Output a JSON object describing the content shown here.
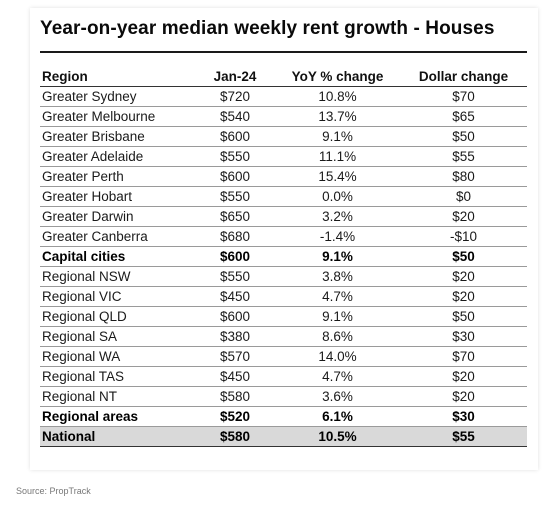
{
  "title": "Year-on-year median weekly rent growth - Houses",
  "table": {
    "headers": {
      "region": "Region",
      "jan": "Jan-24",
      "yoy": "YoY % change",
      "dollar": "Dollar change"
    },
    "rows": [
      {
        "region": "Greater Sydney",
        "jan": "$720",
        "yoy": "10.8%",
        "dollar": "$70",
        "style": "normal"
      },
      {
        "region": "Greater Melbourne",
        "jan": "$540",
        "yoy": "13.7%",
        "dollar": "$65",
        "style": "normal"
      },
      {
        "region": "Greater Brisbane",
        "jan": "$600",
        "yoy": "9.1%",
        "dollar": "$50",
        "style": "normal"
      },
      {
        "region": "Greater Adelaide",
        "jan": "$550",
        "yoy": "11.1%",
        "dollar": "$55",
        "style": "normal"
      },
      {
        "region": "Greater Perth",
        "jan": "$600",
        "yoy": "15.4%",
        "dollar": "$80",
        "style": "normal"
      },
      {
        "region": "Greater Hobart",
        "jan": "$550",
        "yoy": "0.0%",
        "dollar": "$0",
        "style": "normal"
      },
      {
        "region": "Greater Darwin",
        "jan": "$650",
        "yoy": "3.2%",
        "dollar": "$20",
        "style": "normal"
      },
      {
        "region": "Greater Canberra",
        "jan": "$680",
        "yoy": "-1.4%",
        "dollar": "-$10",
        "style": "normal"
      },
      {
        "region": "Capital cities",
        "jan": "$600",
        "yoy": "9.1%",
        "dollar": "$50",
        "style": "bold"
      },
      {
        "region": "Regional NSW",
        "jan": "$550",
        "yoy": "3.8%",
        "dollar": "$20",
        "style": "normal"
      },
      {
        "region": "Regional VIC",
        "jan": "$450",
        "yoy": "4.7%",
        "dollar": "$20",
        "style": "normal"
      },
      {
        "region": "Regional QLD",
        "jan": "$600",
        "yoy": "9.1%",
        "dollar": "$50",
        "style": "normal"
      },
      {
        "region": "Regional SA",
        "jan": "$380",
        "yoy": "8.6%",
        "dollar": "$30",
        "style": "normal"
      },
      {
        "region": "Regional WA",
        "jan": "$570",
        "yoy": "14.0%",
        "dollar": "$70",
        "style": "normal"
      },
      {
        "region": "Regional TAS",
        "jan": "$450",
        "yoy": "4.7%",
        "dollar": "$20",
        "style": "normal"
      },
      {
        "region": "Regional NT",
        "jan": "$580",
        "yoy": "3.6%",
        "dollar": "$20",
        "style": "normal"
      },
      {
        "region": "Regional areas",
        "jan": "$520",
        "yoy": "6.1%",
        "dollar": "$30",
        "style": "bold"
      },
      {
        "region": "National",
        "jan": "$580",
        "yoy": "10.5%",
        "dollar": "$55",
        "style": "national"
      }
    ]
  },
  "source": "Source: PropTrack"
}
